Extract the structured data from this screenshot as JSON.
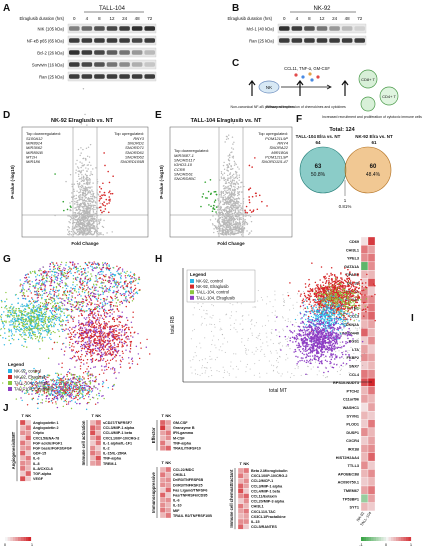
{
  "panels": {
    "A": {
      "letter": "A",
      "cell": "TALL-104",
      "duration_label": "Elraglusib duration (hrs)",
      "times": [
        "0",
        "4",
        "8",
        "12",
        "24",
        "48",
        "72"
      ],
      "proteins": [
        "NIK (105 kDa)",
        "NF-κB p65 (65 kDa)",
        "Bcl-2 (26 kDa)",
        "Survivin (16 kDa)",
        "Ran (25 kDa)"
      ],
      "intensity": [
        [
          0.55,
          0.65,
          0.75,
          0.8,
          0.85,
          0.9,
          0.9
        ],
        [
          0.85,
          0.85,
          0.85,
          0.85,
          0.85,
          0.8,
          0.85
        ],
        [
          0.9,
          0.85,
          0.8,
          0.7,
          0.6,
          0.45,
          0.3
        ],
        [
          0.85,
          0.8,
          0.75,
          0.6,
          0.5,
          0.35,
          0.25
        ],
        [
          0.85,
          0.85,
          0.85,
          0.85,
          0.85,
          0.85,
          0.85
        ]
      ]
    },
    "B": {
      "letter": "B",
      "cell": "NK-92",
      "duration_label": "Elraglusib duration (hrs)",
      "times": [
        "0",
        "4",
        "8",
        "12",
        "24",
        "48",
        "72"
      ],
      "proteins": [
        "Mcl-1 (40 kDa)",
        "Ran (25 kDa)"
      ],
      "intensity": [
        [
          0.9,
          0.85,
          0.75,
          0.6,
          0.45,
          0.3,
          0.2
        ],
        [
          0.85,
          0.85,
          0.85,
          0.85,
          0.85,
          0.85,
          0.85
        ]
      ]
    },
    "C": {
      "letter": "C",
      "nk_label": "NK",
      "cd8_label": "CD8+ T",
      "cd4_label": "CD4+ T",
      "cytokines": "CCL11, TNF-α, GM-CSF",
      "caption1": "Non-canonical NF-κB pathway activation",
      "caption2": "Enhanced expression of chemokines and cytokines",
      "caption3": "Increased recruitment and proliferation of cytotoxic immune cells"
    },
    "D": {
      "letter": "D",
      "title": "NK-92 Elraglusib vs. NT",
      "xlabel": "Fold Change",
      "ylabel": "P-value (-log10)",
      "down_title": "Top downregulated:",
      "down": [
        "S100A12",
        "MIR8914",
        "MIR3662",
        "MIR891B",
        "MT1H",
        "MIR186"
      ],
      "up_title": "Top upregulated:",
      "up": [
        "RNY3",
        "SNORD1",
        "SNORD71",
        "SNORD61",
        "SNORD62",
        "SNORD105B"
      ]
    },
    "E": {
      "letter": "E",
      "title": "TALL-104 Elraglusib vs. NT",
      "xlabel": "Fold Change",
      "ylabel": "P-value (-log10)",
      "down_title": "Top downregulated:",
      "down": [
        "MIR3687-1",
        "SNORD117",
        "IGHD3-10",
        "CCR8",
        "SNORD61",
        "SNORD80C"
      ],
      "up_title": "Top upregulated:",
      "up": [
        "POM121L9P",
        "RNY4",
        "SNORA22",
        "MIR180A",
        "POM121L9P",
        "SNORD115-47"
      ]
    },
    "F": {
      "letter": "F",
      "total_label": "Total: 124",
      "left_label": "TALL-104 Elra vs. NT",
      "left_total": "64",
      "right_label": "NK-92 Elra vs. NT",
      "right_total": "61",
      "left_only": "63",
      "left_pct": "50.8%",
      "right_only": "60",
      "right_pct": "48.4%",
      "overlap": "1",
      "overlap_pct": "0.81%"
    },
    "G": {
      "letter": "G",
      "legend_title": "Legend",
      "legend": [
        "NK-92, control",
        "NK-92, Elraglusib",
        "TALL-104, control",
        "TALL-104, Elraglusib"
      ]
    },
    "H": {
      "letter": "H",
      "xlabel": "total MT",
      "ylabel": "total RB",
      "legend_title": "Legend",
      "legend": [
        "NK-92, control",
        "NK-92, Elraglusib",
        "TALL-104, control",
        "TALL-104, Elraglusib"
      ]
    },
    "I": {
      "letter": "I",
      "col_labels": [
        "NK-92",
        "TALL-104"
      ],
      "genes": [
        "CD69",
        "CHI3L1",
        "YPEL3",
        "GATA1A",
        "TIPARP",
        "DEC30",
        "MAP1A",
        "S100A9",
        "IFITM1",
        "CCL3",
        "CDKN2A",
        "LINC00440",
        "RGS1",
        "LTA",
        "FKBP2",
        "SNX7",
        "CCL4",
        "RPS10-NUDT3",
        "PTCH2",
        "C11orf96",
        "WASHC1",
        "SYVN1",
        "PLOD1",
        "DUSP1",
        "CXCR4",
        "IRX1B",
        "HIST2H2AA4",
        "TTLL3",
        "APOBEC3B",
        "AC090750.1",
        "TMEM67",
        "TP53BP1",
        "SYT1"
      ],
      "values_nk": [
        0.1,
        0.6,
        0.5,
        -0.8,
        0.3,
        0.2,
        0.5,
        0.6,
        0.4,
        0.5,
        0.3,
        0.7,
        0.2,
        0.4,
        0.5,
        0.2,
        0.6,
        0.8,
        0.3,
        0.4,
        0.1,
        0.3,
        0.2,
        0.5,
        0.2,
        0.4,
        0.3,
        0.5,
        0.3,
        0.2,
        0.4,
        -0.5,
        0.3
      ],
      "values_tall": [
        0.9,
        0.4,
        0.6,
        0.5,
        0.3,
        0.8,
        0.2,
        0.5,
        0.6,
        0.7,
        0.4,
        0.3,
        0.5,
        0.2,
        0.4,
        0.3,
        0.5,
        1.0,
        0.6,
        0.3,
        0.4,
        0.2,
        0.6,
        0.3,
        0.4,
        0.5,
        0.7,
        0.2,
        0.5,
        0.3,
        0.6,
        0.4,
        0.2
      ],
      "scale_low": "0",
      "scale_high": "1",
      "scale_neg": "-1"
    },
    "J": {
      "letter": "J",
      "col_t": "T",
      "col_nk": "NK",
      "groups": [
        {
          "name": "Angiogenesis/EMT",
          "items": [
            "Angiopoietin 1",
            "Angiopoietin 2",
            "Cripto",
            "CXCL5/ENA-78",
            "FGF acidic/FGF1",
            "FGF basic/FGF2/bFGF",
            "GDF-15",
            "IL-6",
            "IL-8",
            "IL-8/CXCL8",
            "TGF-alpha",
            "VEGF"
          ],
          "t": [
            0.8,
            0.3,
            0.5,
            0.2,
            0.6,
            0.4,
            0.7,
            0.3,
            0.5,
            0.6,
            0.2,
            0.8
          ],
          "nk": [
            0.2,
            0.6,
            0.4,
            0.7,
            0.3,
            0.5,
            0.2,
            0.6,
            0.4,
            0.3,
            0.7,
            0.2
          ]
        },
        {
          "name": "Immune cell activation",
          "items": [
            "sCD27/TNFRSF7",
            "CCL3/MIP-1 alpha",
            "CCL4/MIP-1 beta",
            "CXCL10/IP-10/CRG-2",
            "IL-1 alpha/IL-1F1",
            "IL-2",
            "IL-15/IL-15RA",
            "TNF-alpha",
            "TREM-1"
          ],
          "t": [
            0.3,
            0.7,
            0.8,
            0.4,
            0.2,
            0.5,
            0.6,
            0.3,
            0.4
          ],
          "nk": [
            0.6,
            0.5,
            0.3,
            0.7,
            0.6,
            0.2,
            0.4,
            0.8,
            0.5
          ]
        },
        {
          "name": "Effector",
          "items": [
            "GM-CSF",
            "Granzyme B",
            "IFN-gamma",
            "M-CSF",
            "TNF-alpha",
            "TRAIL/TNFSF10"
          ],
          "t": [
            0.7,
            0.9,
            0.4,
            0.3,
            0.6,
            0.5
          ],
          "nk": [
            0.4,
            0.3,
            0.6,
            0.5,
            0.2,
            0.7
          ]
        },
        {
          "name": "Immunosuppressive",
          "items": [
            "CCL22/MDC",
            "CHI3L1",
            "Dr/R3/TNFRSF6B",
            "Dr/R3/TNFRSF25",
            "Fas Ligand/TNFSF6",
            "Fas/TNFRSF6/CD95",
            "IL-6",
            "IL-10",
            "MIF",
            "TRAIL R2/TNFRSF10B"
          ],
          "t": [
            0.3,
            0.6,
            0.4,
            0.5,
            0.2,
            0.7,
            0.4,
            0.5,
            0.6,
            0.3
          ],
          "nk": [
            0.6,
            0.3,
            0.5,
            0.4,
            0.7,
            0.2,
            0.5,
            0.3,
            0.4,
            0.6
          ]
        },
        {
          "name": "Immune cell chemoattractant",
          "items": [
            "Beta 2-Microglobulin",
            "CXCL10/IP-10/CRG-2",
            "CCL2/MCP-1",
            "CCL3/MIP-1 alpha",
            "CCL4/MIP-1 beta",
            "CCL11/Eotaxin",
            "CCL20/MIP-3 alpha",
            "CHI3L1",
            "CXCL11/I-TAC",
            "CX3CL1/Fractalkine",
            "IL-15",
            "CCL5/RANTES"
          ],
          "t": [
            0.4,
            0.6,
            0.3,
            0.7,
            0.8,
            0.5,
            0.2,
            0.6,
            0.4,
            0.3,
            0.5,
            0.7
          ],
          "nk": [
            0.6,
            0.3,
            0.5,
            0.4,
            0.2,
            0.7,
            0.5,
            0.3,
            0.6,
            0.4,
            0.5,
            0.2
          ]
        }
      ],
      "scale_low": "0",
      "scale_high": "1"
    }
  },
  "colors": {
    "nk_control": "#29b6e6",
    "nk_elra": "#d62728",
    "tall_control": "#8cc63f",
    "tall_elra": "#8e3ec4",
    "heat_high": "#d3252b",
    "heat_mid": "#f5f5f5",
    "heat_low": "#3aa547",
    "venn_left": "#2ba39b",
    "venn_right": "#e69a3a"
  }
}
